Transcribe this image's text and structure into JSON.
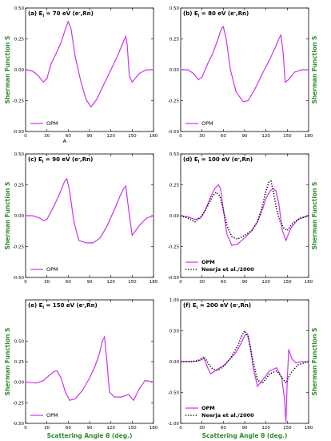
{
  "colors": {
    "opm": "#cc33ee",
    "neerja": "#000000",
    "label": "#2e8b2e"
  },
  "figure": {
    "layout": "3 rows x 2 columns",
    "shared_xlabel": "Scattering Angle θ (deg.)",
    "shared_ylabel": "Sherman Function S"
  },
  "chart_data": [
    {
      "id": "a",
      "type": "line",
      "title": "(a) E",
      "energy": "70 eV (e",
      "species": ",Rn)",
      "xlim": [
        0,
        180
      ],
      "ylim": [
        -0.5,
        0.5
      ],
      "xticks": [
        0,
        30,
        60,
        90,
        120,
        150,
        180
      ],
      "yticks": [
        -0.5,
        -0.25,
        0.0,
        0.25,
        0.5
      ],
      "ytick_labels": [
        "-0.50",
        "-0.25",
        "0.00",
        "0.25",
        "0.50"
      ],
      "xlabel": "",
      "ylabel": "Sherman Function S",
      "ylabel_side": "left",
      "annotation": "A",
      "legend": [
        "OPM"
      ],
      "series": [
        {
          "name": "OPM",
          "style": "solid",
          "x": [
            0,
            10,
            18,
            25,
            30,
            36,
            42,
            50,
            56,
            60,
            64,
            70,
            78,
            85,
            92,
            100,
            110,
            120,
            130,
            137,
            141,
            143,
            146,
            150,
            160,
            170,
            180
          ],
          "y": [
            0.0,
            -0.01,
            -0.05,
            -0.1,
            -0.07,
            0.05,
            0.12,
            0.22,
            0.33,
            0.39,
            0.33,
            0.1,
            -0.1,
            -0.24,
            -0.3,
            -0.24,
            -0.12,
            0.0,
            0.12,
            0.22,
            0.27,
            0.2,
            -0.05,
            -0.1,
            -0.03,
            0.0,
            0.0
          ]
        }
      ]
    },
    {
      "id": "b",
      "type": "line",
      "title": "(b) E",
      "energy": "80 eV (e",
      "species": ",Rn)",
      "xlim": [
        0,
        180
      ],
      "ylim": [
        -0.5,
        0.5
      ],
      "xticks": [
        0,
        30,
        60,
        90,
        120,
        150,
        180
      ],
      "yticks": [
        -0.5,
        -0.25,
        0.0,
        0.25,
        0.5
      ],
      "ytick_labels": [
        "-0.50",
        "-0.25",
        "0.00",
        "0.25",
        "0.50"
      ],
      "xlabel": "",
      "ylabel": "Sherman Function S",
      "ylabel_side": "right",
      "legend": [
        "OPM"
      ],
      "series": [
        {
          "name": "OPM",
          "style": "solid",
          "x": [
            0,
            10,
            18,
            25,
            30,
            38,
            45,
            52,
            57,
            60,
            64,
            70,
            78,
            88,
            95,
            105,
            115,
            125,
            133,
            138,
            141,
            144,
            147,
            152,
            160,
            170,
            180
          ],
          "y": [
            0.0,
            0.0,
            -0.03,
            -0.08,
            -0.06,
            0.05,
            0.13,
            0.24,
            0.33,
            0.35,
            0.25,
            0.0,
            -0.18,
            -0.26,
            -0.25,
            -0.15,
            -0.03,
            0.08,
            0.18,
            0.25,
            0.28,
            0.15,
            -0.1,
            -0.08,
            -0.02,
            0.0,
            0.0
          ]
        }
      ]
    },
    {
      "id": "c",
      "type": "line",
      "title": "(c) E",
      "energy": "90 eV (e",
      "species": ",Rn)",
      "xlim": [
        0,
        180
      ],
      "ylim": [
        -0.5,
        0.5
      ],
      "xticks": [
        0,
        30,
        60,
        90,
        120,
        150,
        180
      ],
      "yticks": [
        -0.5,
        -0.25,
        0.0,
        0.25,
        0.5
      ],
      "ytick_labels": [
        "-0.50",
        "-0.25",
        "0.00",
        "0.25",
        "0.50"
      ],
      "xlabel": "",
      "ylabel": "Sherman Function S",
      "ylabel_side": "left",
      "legend": [
        "OPM"
      ],
      "series": [
        {
          "name": "OPM",
          "style": "solid",
          "x": [
            0,
            10,
            20,
            25,
            30,
            40,
            48,
            55,
            58,
            62,
            68,
            75,
            85,
            95,
            105,
            115,
            125,
            133,
            138,
            141,
            145,
            150,
            160,
            170,
            180
          ],
          "y": [
            0.0,
            0.0,
            -0.02,
            -0.04,
            -0.03,
            0.08,
            0.18,
            0.28,
            0.3,
            0.2,
            -0.05,
            -0.2,
            -0.22,
            -0.22,
            -0.18,
            -0.08,
            0.05,
            0.16,
            0.22,
            0.24,
            0.05,
            -0.16,
            -0.08,
            -0.02,
            0.0
          ]
        }
      ]
    },
    {
      "id": "d",
      "type": "line",
      "title": "(d) E",
      "energy": "100 eV (e",
      "species": ",Rn)",
      "xlim": [
        0,
        180
      ],
      "ylim": [
        -0.5,
        0.5
      ],
      "xticks": [
        0,
        30,
        60,
        90,
        120,
        150,
        180
      ],
      "yticks": [
        -0.5,
        -0.25,
        0.0,
        0.25,
        0.5
      ],
      "ytick_labels": [
        "-0.50",
        "-0.25",
        "0.00",
        "0.25",
        "0.50"
      ],
      "xlabel": "",
      "ylabel": "Sherman Function S",
      "ylabel_side": "right",
      "legend": [
        "OPM",
        "Neerja et al./2000"
      ],
      "series": [
        {
          "name": "OPM",
          "style": "solid",
          "x": [
            0,
            10,
            20,
            28,
            35,
            42,
            48,
            53,
            56,
            60,
            65,
            72,
            80,
            90,
            100,
            108,
            115,
            120,
            126,
            130,
            134,
            138,
            143,
            148,
            155,
            165,
            175,
            180
          ],
          "y": [
            0.0,
            -0.01,
            -0.03,
            -0.02,
            0.05,
            0.15,
            0.22,
            0.25,
            0.22,
            0.05,
            -0.15,
            -0.24,
            -0.23,
            -0.18,
            -0.12,
            -0.05,
            0.05,
            0.14,
            0.2,
            0.22,
            0.2,
            0.1,
            -0.12,
            -0.2,
            -0.1,
            -0.03,
            -0.01,
            0.0
          ]
        },
        {
          "name": "Neerja et al./2000",
          "style": "dotted",
          "x": [
            0,
            10,
            20,
            30,
            38,
            45,
            50,
            55,
            60,
            65,
            72,
            80,
            90,
            100,
            108,
            115,
            120,
            124,
            127,
            130,
            135,
            140,
            145,
            150,
            158,
            168,
            180
          ],
          "y": [
            0.0,
            -0.02,
            -0.05,
            0.0,
            0.08,
            0.16,
            0.19,
            0.16,
            0.05,
            -0.08,
            -0.17,
            -0.19,
            -0.16,
            -0.12,
            -0.05,
            0.08,
            0.2,
            0.27,
            0.28,
            0.2,
            0.05,
            -0.05,
            -0.1,
            -0.12,
            -0.06,
            -0.02,
            0.0
          ]
        }
      ]
    },
    {
      "id": "e",
      "type": "line",
      "title": "(e) E",
      "energy": "150 eV (e",
      "species": ",Rn)",
      "xlim": [
        0,
        180
      ],
      "ylim": [
        -0.5,
        1.0
      ],
      "xticks": [
        0,
        30,
        60,
        90,
        120,
        150,
        180
      ],
      "yticks": [
        -0.5,
        -0.25,
        0.0,
        0.25,
        0.5
      ],
      "ytick_labels": [
        "-0.50",
        "-0.25",
        "0.00",
        "0.25",
        "0.50"
      ],
      "xlabel": "Scattering Angle θ (deg.)",
      "ylabel": "Sherman Function S",
      "ylabel_side": "left",
      "legend": [
        "OPM"
      ],
      "series": [
        {
          "name": "OPM",
          "style": "solid",
          "x": [
            0,
            15,
            25,
            33,
            40,
            44,
            50,
            56,
            62,
            70,
            80,
            90,
            98,
            104,
            108,
            111,
            114,
            118,
            125,
            135,
            145,
            152,
            160,
            168,
            175,
            180
          ],
          "y": [
            0.0,
            -0.01,
            0.02,
            0.08,
            0.13,
            0.14,
            0.05,
            -0.12,
            -0.22,
            -0.2,
            -0.1,
            0.05,
            0.2,
            0.35,
            0.5,
            0.55,
            0.3,
            -0.12,
            -0.18,
            -0.18,
            -0.15,
            -0.22,
            -0.08,
            0.02,
            0.01,
            0.0
          ]
        }
      ]
    },
    {
      "id": "f",
      "type": "line",
      "title": "(f) E",
      "energy": "200 eV (e",
      "species": ",Rn)",
      "xlim": [
        0,
        180
      ],
      "ylim": [
        -1.0,
        1.0
      ],
      "xticks": [
        0,
        30,
        60,
        90,
        120,
        150,
        180
      ],
      "yticks": [
        -1.0,
        -0.5,
        0.0,
        0.5,
        1.0
      ],
      "ytick_labels": [
        "-1.00",
        "-0.50",
        "0.00",
        "0.50",
        "1.00"
      ],
      "xlabel": "Scattering Angle θ (deg.)",
      "ylabel": "Sherman Function S",
      "ylabel_side": "right",
      "legend": [
        "OPM",
        "Neerja et al./2000"
      ],
      "series": [
        {
          "name": "OPM",
          "style": "solid",
          "x": [
            0,
            15,
            25,
            33,
            38,
            42,
            48,
            55,
            62,
            70,
            78,
            85,
            90,
            94,
            98,
            102,
            108,
            115,
            125,
            135,
            142,
            146,
            148,
            150,
            152,
            156,
            162,
            170,
            180
          ],
          "y": [
            0.0,
            0.0,
            0.01,
            0.05,
            -0.1,
            -0.2,
            -0.15,
            -0.1,
            -0.05,
            0.05,
            0.15,
            0.3,
            0.42,
            0.45,
            0.25,
            -0.1,
            -0.4,
            -0.3,
            -0.15,
            -0.1,
            -0.25,
            -0.6,
            -0.98,
            -0.3,
            0.2,
            0.05,
            -0.02,
            0.0,
            0.0
          ]
        },
        {
          "name": "Neerja et al./2000",
          "style": "dotted",
          "x": [
            0,
            15,
            25,
            33,
            40,
            45,
            52,
            60,
            70,
            80,
            86,
            90,
            95,
            100,
            108,
            115,
            125,
            135,
            142,
            148,
            155,
            165,
            180
          ],
          "y": [
            0.0,
            0.0,
            0.02,
            0.08,
            -0.05,
            -0.12,
            -0.14,
            -0.08,
            0.05,
            0.25,
            0.42,
            0.5,
            0.4,
            0.1,
            -0.3,
            -0.35,
            -0.2,
            -0.15,
            -0.25,
            -0.35,
            -0.18,
            -0.05,
            0.0
          ]
        }
      ]
    }
  ]
}
